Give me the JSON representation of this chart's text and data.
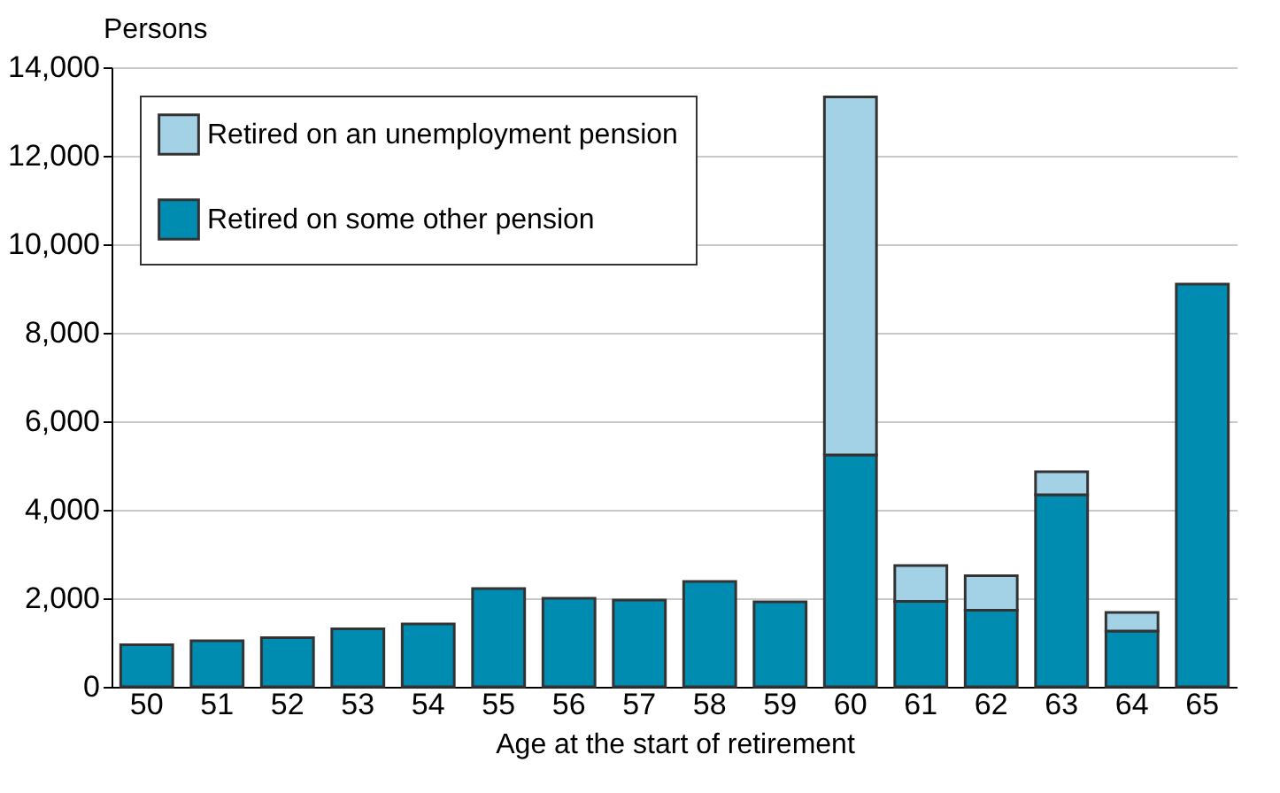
{
  "chart_data": {
    "type": "bar",
    "stacked": true,
    "ylabel": "Persons",
    "xlabel": "Age at the start of retirement",
    "categories": [
      "50",
      "51",
      "52",
      "53",
      "54",
      "55",
      "56",
      "57",
      "58",
      "59",
      "60",
      "61",
      "62",
      "63",
      "64",
      "65"
    ],
    "series": [
      {
        "name": "Retired on some other pension",
        "color": "#008bb0",
        "values": [
          950,
          1040,
          1110,
          1310,
          1420,
          2220,
          2000,
          1960,
          2380,
          1920,
          5240,
          1930,
          1730,
          4340,
          1260,
          9100
        ]
      },
      {
        "name": "Retired on an unemployment pension",
        "color": "#a3d2e6",
        "values": [
          null,
          null,
          null,
          null,
          null,
          null,
          null,
          null,
          null,
          null,
          8090,
          810,
          780,
          520,
          420,
          null
        ]
      }
    ],
    "ylim": [
      0,
      14000
    ],
    "yticks": [
      0,
      {
        "value": 2000,
        "label": "2,000"
      },
      {
        "value": 4000,
        "label": "4,000"
      },
      {
        "value": 6000,
        "label": "6,000"
      },
      {
        "value": 8000,
        "label": "8,000"
      },
      {
        "value": 10000,
        "label": "10,000"
      },
      {
        "value": 12000,
        "label": "12,000"
      },
      {
        "value": 14000,
        "label": "14,000"
      }
    ],
    "grid": "y",
    "legend": "top left"
  }
}
